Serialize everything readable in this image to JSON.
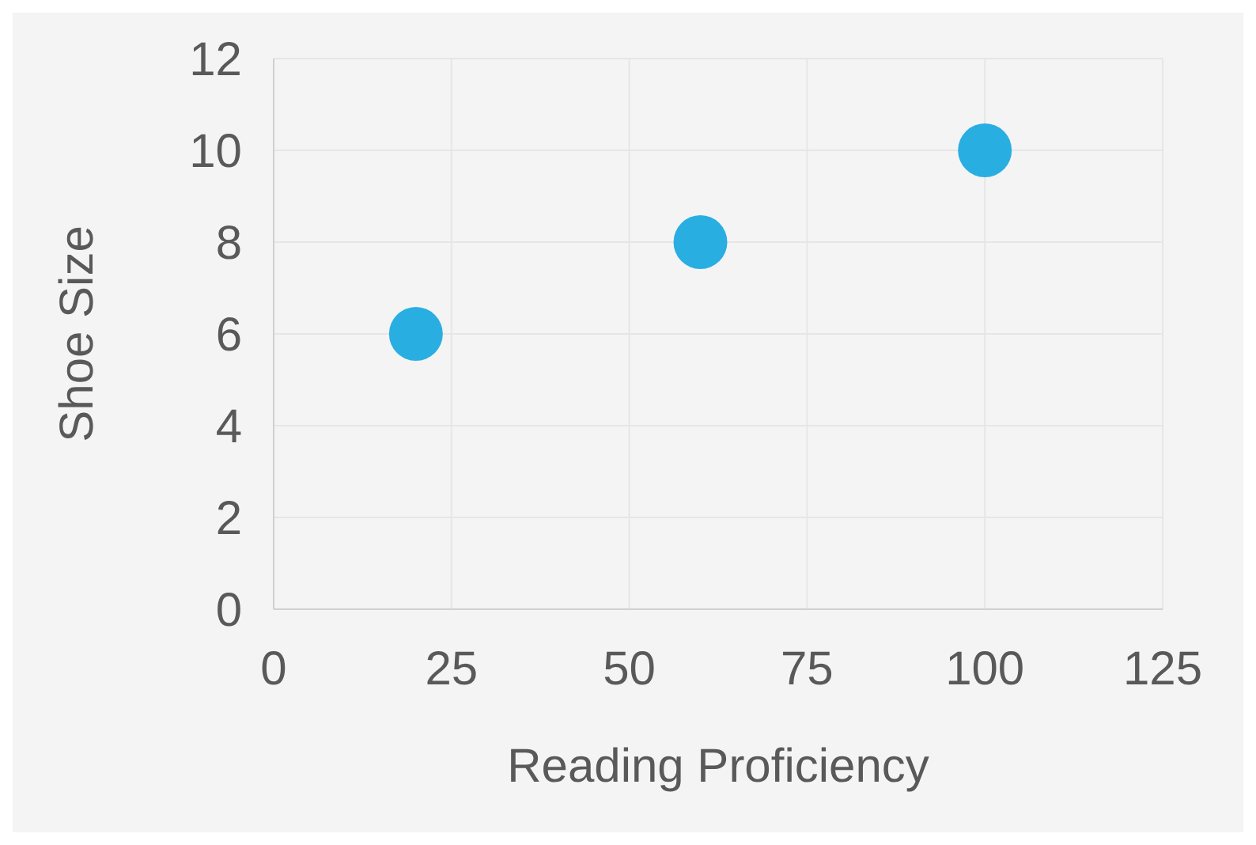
{
  "chart_data": {
    "type": "scatter",
    "xlabel": "Reading Proficiency",
    "ylabel": "Shoe Size",
    "x": [
      20,
      60,
      100
    ],
    "series": [
      {
        "color": "#29aee2",
        "values": [
          6,
          8,
          10
        ]
      }
    ],
    "xlim": [
      0,
      125
    ],
    "xticks": [
      0,
      25,
      50,
      75,
      100,
      125
    ],
    "ylim": [
      0,
      12
    ],
    "yticks": [
      0,
      2,
      4,
      6,
      8,
      10,
      12
    ],
    "grid": true,
    "marker": "circle",
    "legend": false
  }
}
